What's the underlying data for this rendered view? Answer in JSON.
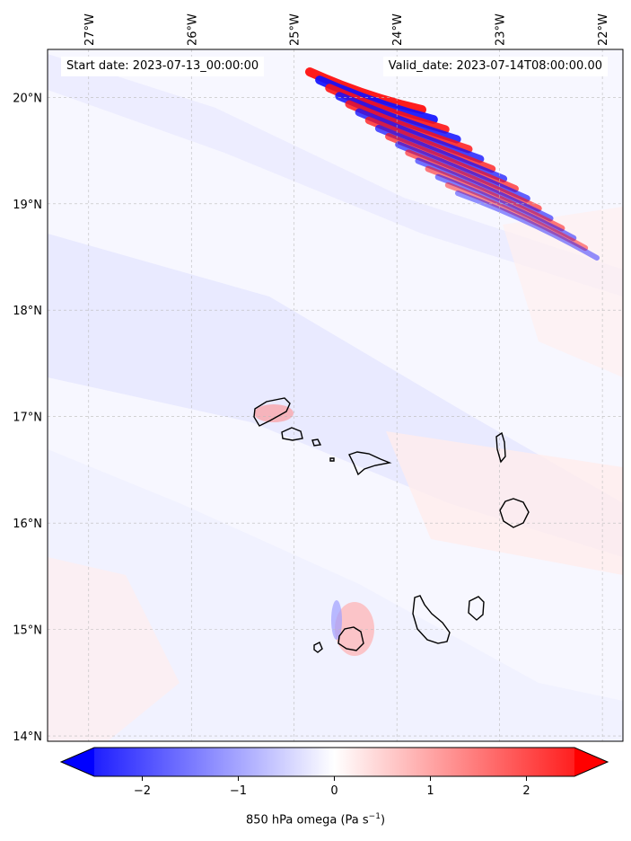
{
  "map": {
    "start_date_label": "Start date: 2023-07-13_00:00:00",
    "valid_date_label": "Valid_date: 2023-07-14T08:00:00.00",
    "lon_ticks": [
      "27°W",
      "26°W",
      "25°W",
      "24°W",
      "23°W",
      "22°W"
    ],
    "lat_ticks": [
      "20°N",
      "19°N",
      "18°N",
      "17°N",
      "16°N",
      "15°N",
      "14°N"
    ],
    "lon_values": [
      -27,
      -26,
      -25,
      -24,
      -23,
      -22
    ],
    "lat_values": [
      20,
      19,
      18,
      17,
      16,
      15,
      14
    ],
    "lon_range": [
      -27.4,
      -21.8
    ],
    "lat_range": [
      13.95,
      20.45
    ],
    "gridlines": true,
    "coastline_color": "#000000"
  },
  "colorbar": {
    "ticks": [
      "−2",
      "−1",
      "0",
      "1",
      "2"
    ],
    "tick_values": [
      -2,
      -1,
      0,
      1,
      2
    ],
    "range": [
      -2.5,
      2.5
    ],
    "extend": "both",
    "label_main": "850 hPa omega (Pa s",
    "label_exp": "−1",
    "label_end": ")",
    "cmap": "bwr",
    "low_color": "#0000ff",
    "mid_color": "#ffffff",
    "high_color": "#ff0000"
  }
}
